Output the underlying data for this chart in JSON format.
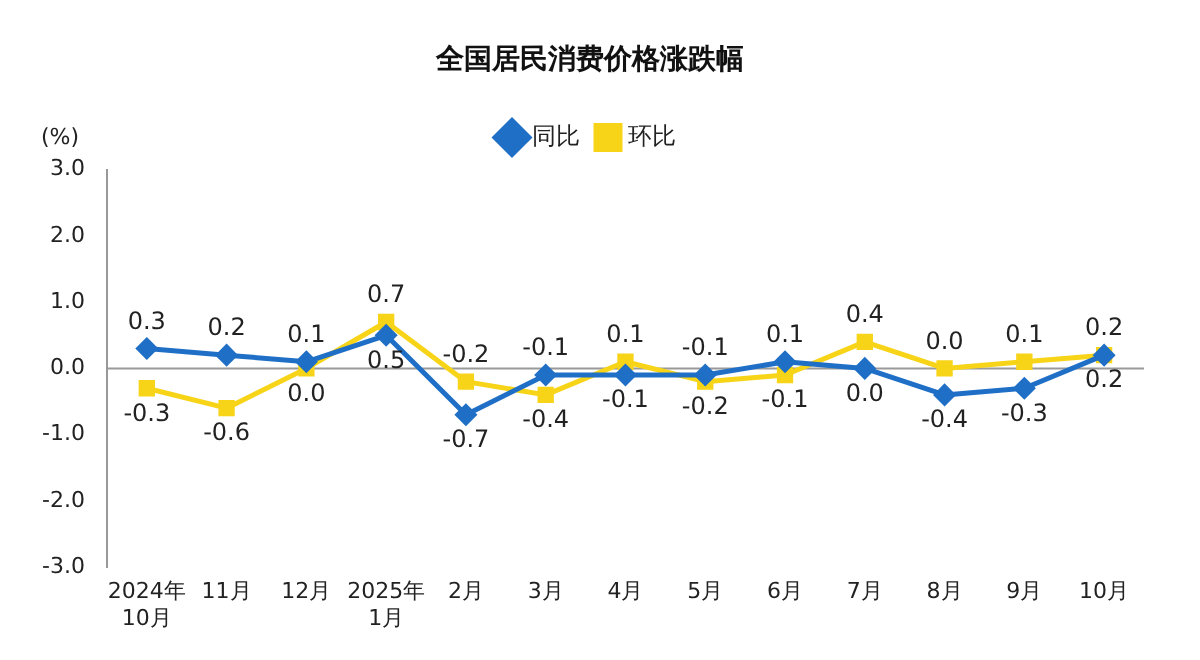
{
  "chart_data": {
    "type": "line",
    "title": "全国居民消费价格涨跌幅",
    "ylabel": "(%)",
    "categories": [
      "2024年\n10月",
      "11月",
      "12月",
      "2025年\n1月",
      "2月",
      "3月",
      "4月",
      "5月",
      "6月",
      "7月",
      "8月",
      "9月",
      "10月"
    ],
    "series": [
      {
        "name": "同比",
        "color": "#1f6fc6",
        "marker": "diamond",
        "values": [
          0.3,
          0.2,
          0.1,
          0.5,
          -0.7,
          -0.1,
          -0.1,
          -0.1,
          0.1,
          0.0,
          -0.4,
          -0.3,
          0.2
        ],
        "value_labels": [
          "0.3",
          "0.2",
          "0.1",
          "0.5",
          "-0.7",
          "-0.1",
          "-0.1",
          "-0.1",
          "0.1",
          "0.0",
          "-0.4",
          "-0.3",
          "0.2"
        ]
      },
      {
        "name": "环比",
        "color": "#f7d417",
        "marker": "square",
        "values": [
          -0.3,
          -0.6,
          0.0,
          0.7,
          -0.2,
          -0.4,
          0.1,
          -0.2,
          -0.1,
          0.4,
          0.0,
          0.1,
          0.2
        ],
        "value_labels": [
          "-0.3",
          "-0.6",
          "0.0",
          "0.7",
          "-0.2",
          "-0.4",
          "0.1",
          "-0.2",
          "-0.1",
          "0.4",
          "0.0",
          "0.1",
          "0.2"
        ]
      }
    ],
    "ylim": [
      -3,
      3
    ],
    "yticks": [
      {
        "value": -3,
        "label": "-3.0"
      },
      {
        "value": -2,
        "label": "-2.0"
      },
      {
        "value": -1,
        "label": "-1.0"
      },
      {
        "value": 0,
        "label": "0.0"
      },
      {
        "value": 1,
        "label": "1.0"
      },
      {
        "value": 2,
        "label": "2.0"
      },
      {
        "value": 3,
        "label": "3.0"
      }
    ],
    "ref_lines": [
      {
        "axis": "y",
        "value": 0,
        "color": "#999999"
      }
    ],
    "legend": "top",
    "line_style": "solid",
    "grid": false
  }
}
